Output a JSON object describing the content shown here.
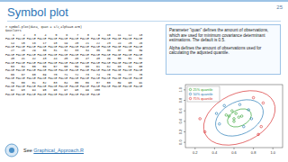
{
  "header": {
    "title": "Symbol plot",
    "page": "25"
  },
  "code": {
    "command": "> symbol.plot(data, quan = 1/2,alpha=0.975)",
    "output_label": "$outliers",
    "rows": [
      "    1     2     3     4     5     6     7     8     9    10    11    12    13",
      "FALSE FALSE FALSE FALSE FALSE FALSE FALSE FALSE FALSE FALSE FALSE FALSE FALSE",
      "   14    15    16    17    18    19    20    21    22    23    24    25    26",
      "FALSE FALSE FALSE FALSE FALSE FALSE FALSE FALSE FALSE FALSE FALSE FALSE FALSE",
      "   27    28    29    30    31    32    33    34    35    36    37    38    39",
      "FALSE FALSE FALSE FALSE FALSE FALSE FALSE FALSE FALSE FALSE FALSE FALSE FALSE",
      "   40    41    42    43    44    45    46    47    48    49    50    51    52",
      "FALSE FALSE FALSE FALSE FALSE FALSE FALSE FALSE FALSE FALSE FALSE FALSE FALSE",
      "   53    54    55    56    57    58    59    60    61    62    63    64    65",
      "FALSE FALSE FALSE FALSE FALSE FALSE FALSE FALSE FALSE FALSE FALSE FALSE FALSE",
      "   66    67    68    69    70    71    72    73    74    75    76    77    78",
      "FALSE FALSE FALSE FALSE FALSE FALSE FALSE FALSE FALSE FALSE FALSE FALSE FALSE",
      "   79    80    81    82    83    84    85    86    87    88    89    90    91",
      "FALSE FALSE FALSE FALSE FALSE FALSE FALSE FALSE FALSE FALSE FALSE FALSE FALSE",
      "   92    93    94    95    96    97    98    99   100",
      "FALSE FALSE FALSE FALSE FALSE FALSE FALSE FALSE FALSE"
    ]
  },
  "notes": [
    "Parameter \"quan\" defines the amount of observations, which are used for minimum covariance determinant estimations. The default is 0.5.",
    "Alpha defines the amount of observations used for calculating the adjusted quantile."
  ],
  "footer": {
    "prefix": "See",
    "link": "Graphical_Approach.R"
  },
  "chart_data": {
    "type": "scatter",
    "legend": "upper left",
    "xlim": [
      0.1,
      1.1
    ],
    "ylim": [
      -0.1,
      1.1
    ],
    "xticks": [
      0.2,
      0.4,
      0.6,
      0.8,
      {
        "value": 1,
        "label": "1.0"
      }
    ],
    "yticks": [
      {
        "value": 0,
        "label": "0.0"
      },
      0.2,
      0.4,
      0.6,
      0.8,
      {
        "value": 1,
        "label": "1.0"
      }
    ],
    "series": [
      {
        "name": "25% quantile",
        "color": "#2ca02c",
        "marker": "circle",
        "x": [
          0.55,
          0.6,
          0.62,
          0.58,
          0.65,
          0.52,
          0.68,
          0.6
        ],
        "values": [
          0.5,
          0.45,
          0.55,
          0.6,
          0.48,
          0.52,
          0.5,
          0.4
        ]
      },
      {
        "name": "50% quantile",
        "color": "#1f77b4",
        "marker": "circle",
        "x": [
          0.45,
          0.75,
          0.7,
          0.5,
          0.78,
          0.42,
          0.66
        ],
        "values": [
          0.35,
          0.62,
          0.3,
          0.7,
          0.45,
          0.55,
          0.72
        ]
      },
      {
        "name": "75% quantile",
        "color": "#d62728",
        "marker": "circle",
        "x": [
          0.3,
          0.9,
          0.85,
          0.88,
          0.8,
          0.25
        ],
        "values": [
          0.2,
          0.75,
          0.15,
          0.3,
          0.85,
          0.45
        ]
      }
    ]
  }
}
